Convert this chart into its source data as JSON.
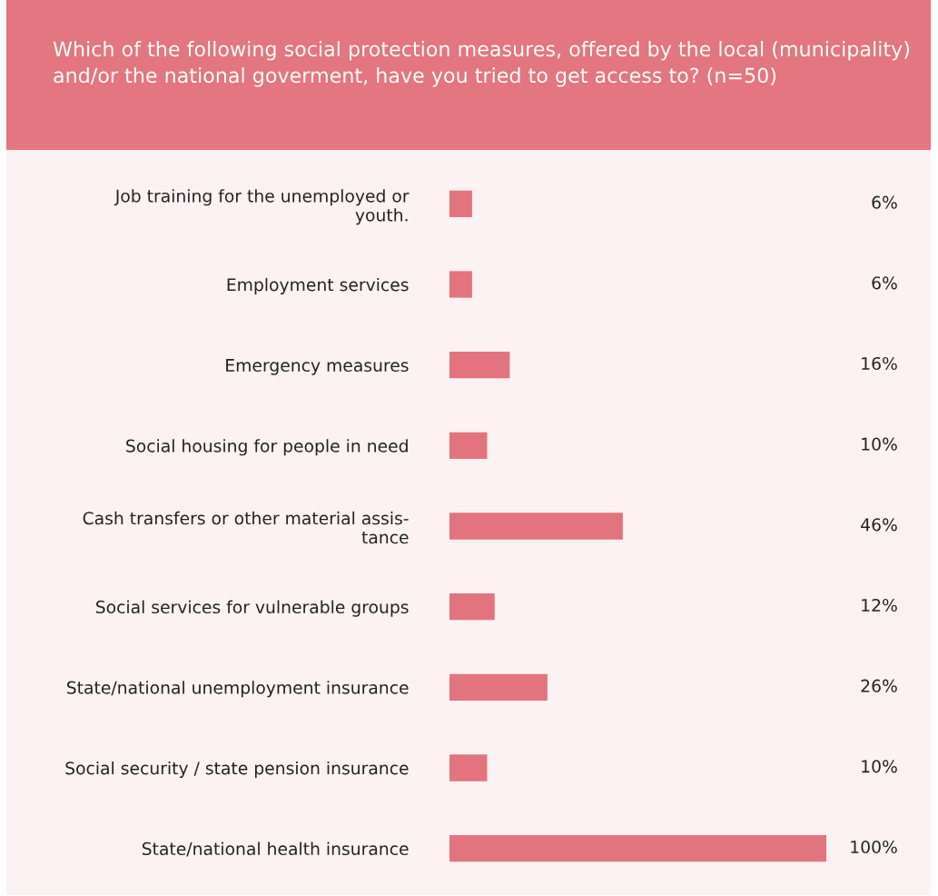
{
  "chart_data": {
    "type": "bar",
    "orientation": "horizontal",
    "xlim": [
      0,
      100
    ],
    "tick_labels": "y",
    "grid": false,
    "legend": false,
    "title": "Which of the following social protection measures, offered by the local (municipality) and/or the national goverment, have you tried to get access to? (n=50)",
    "categories": [
      "Job training for the unemployed or\nyouth.",
      "Employment services",
      "Emergency measures",
      "Social housing for people in need",
      "Cash transfers or other material assis-\ntance",
      "Social services for vulnerable groups",
      "State/national unemployment insurance",
      "Social security / state pension insurance",
      "State/national health insurance"
    ],
    "values": [
      6,
      6,
      16,
      10,
      46,
      12,
      26,
      10,
      100
    ],
    "value_labels": [
      "6%",
      "6%",
      "16%",
      "10%",
      "46%",
      "12%",
      "26%",
      "10%",
      "100%"
    ],
    "color": "#e3747d"
  }
}
